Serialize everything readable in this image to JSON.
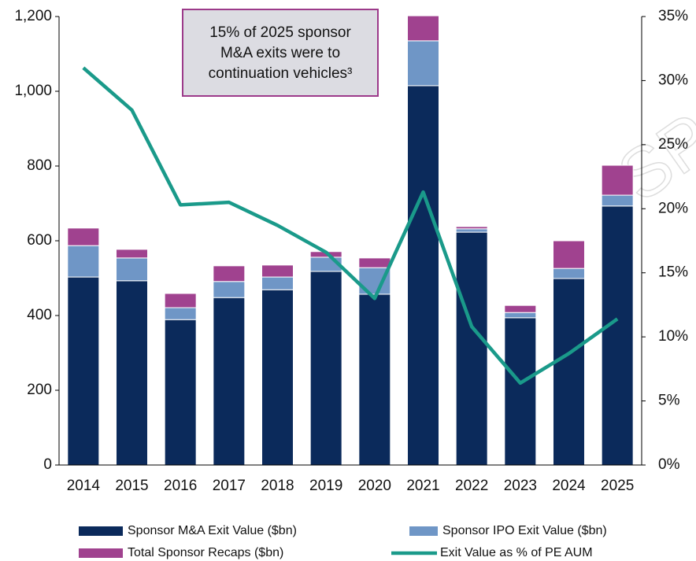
{
  "chart_data": {
    "type": "bar",
    "stacked": true,
    "annotation": [
      "15% of 2025 sponsor",
      "M&A exits were to",
      "continuation vehicles³"
    ],
    "watermark": "SP",
    "categories": [
      "2014",
      "2015",
      "2016",
      "2017",
      "2018",
      "2019",
      "2020",
      "2021",
      "2022",
      "2023",
      "2024",
      "2025"
    ],
    "series": [
      {
        "name": "Sponsor M&A Exit Value ($bn)",
        "color": "#0b2a5b",
        "values": [
          503,
          493,
          389,
          448,
          469,
          518,
          457,
          1015,
          623,
          394,
          499,
          693
        ]
      },
      {
        "name": "Sponsor IPO Exit Value ($bn)",
        "color": "#6f96c6",
        "values": [
          84,
          61,
          32,
          43,
          34,
          38,
          71,
          120,
          9,
          14,
          27,
          29
        ]
      },
      {
        "name": "Total Sponsor Recaps ($bn)",
        "color": "#a0428f",
        "values": [
          47,
          23,
          38,
          42,
          32,
          15,
          26,
          67,
          6,
          19,
          74,
          80
        ]
      },
      {
        "name": "Exit Value as % of PE AUM",
        "color": "#1a9a8a",
        "type": "line",
        "axis": "y2",
        "values": [
          31.0,
          27.7,
          20.3,
          20.5,
          18.7,
          16.6,
          13.0,
          21.3,
          10.8,
          6.4,
          8.7,
          11.4
        ]
      }
    ],
    "ylim": [
      0,
      1200
    ],
    "yticks": [
      0,
      200,
      400,
      600,
      800,
      {
        "value": 1000,
        "label": "1,000"
      },
      {
        "value": 1200,
        "label": "1,200"
      }
    ],
    "y2lim": [
      0,
      35
    ],
    "y2ticks": [
      {
        "value": 0,
        "label": "0%"
      },
      {
        "value": 5,
        "label": "5%"
      },
      {
        "value": 10,
        "label": "10%"
      },
      {
        "value": 15,
        "label": "15%"
      },
      {
        "value": 20,
        "label": "20%"
      },
      {
        "value": 25,
        "label": "25%"
      },
      {
        "value": 30,
        "label": "30%"
      },
      {
        "value": 35,
        "label": "35%"
      }
    ],
    "grid": false,
    "legend": "bottom"
  }
}
